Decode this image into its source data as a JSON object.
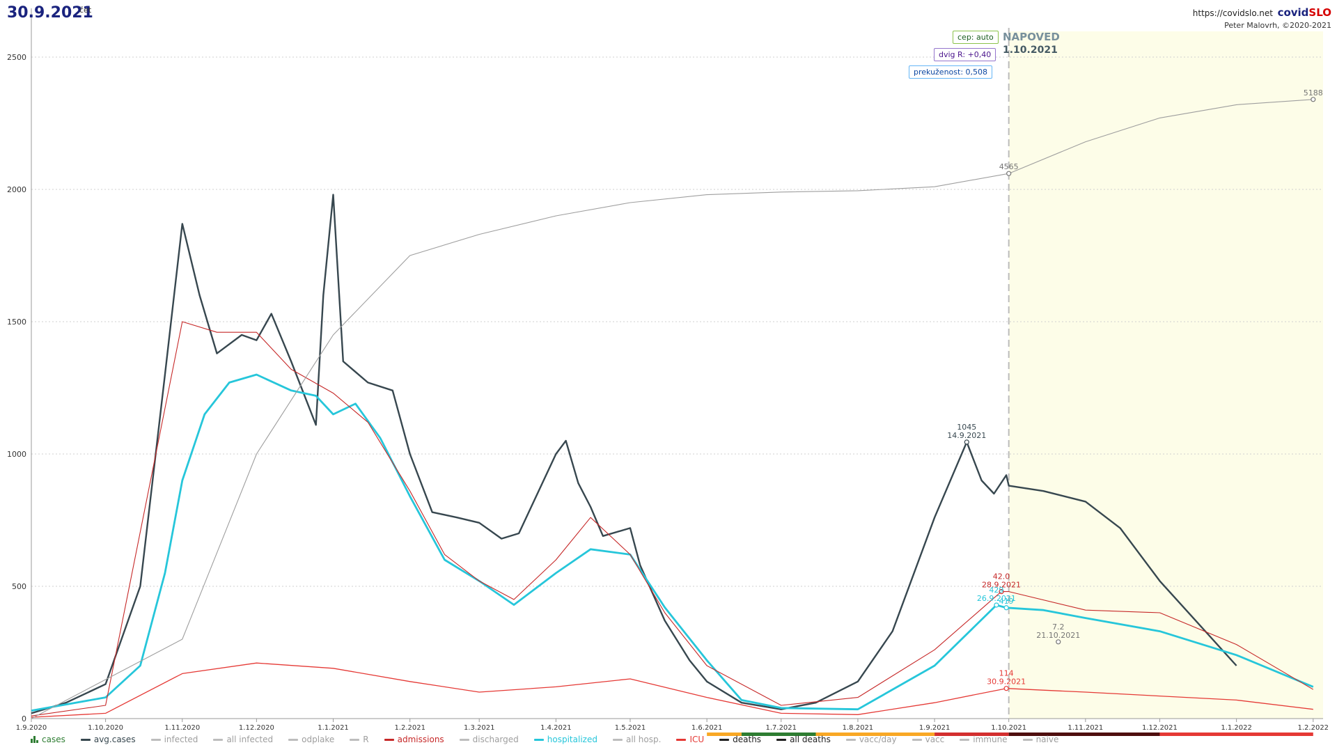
{
  "header": {
    "date": "30.9.2021",
    "day": "čet",
    "url": "https://covidslo.net",
    "brand_a": "covid",
    "brand_b": "SLO",
    "author": "Peter Malovrh, ©2020-2021"
  },
  "controls": {
    "cep": "cep: auto",
    "dvig": "dvig R: +0,40",
    "prekuzenost": "prekuženost: 0,508",
    "napoved": "NAPOVED",
    "napoved_date": "1.10.2021"
  },
  "legend": [
    {
      "label": "cases",
      "color": "#2e7d32",
      "kind": "bars",
      "muted": false
    },
    {
      "label": "avg.cases",
      "color": "#37474f",
      "kind": "line",
      "muted": false
    },
    {
      "label": "infected",
      "color": "#bdbdbd",
      "kind": "line",
      "muted": true
    },
    {
      "label": "all infected",
      "color": "#bdbdbd",
      "kind": "line",
      "muted": true
    },
    {
      "label": "odplake",
      "color": "#bdbdbd",
      "kind": "line",
      "muted": true
    },
    {
      "label": "R",
      "color": "#bdbdbd",
      "kind": "line",
      "muted": true
    },
    {
      "label": "admissions",
      "color": "#c62828",
      "kind": "line",
      "muted": false
    },
    {
      "label": "discharged",
      "color": "#bdbdbd",
      "kind": "line",
      "muted": true
    },
    {
      "label": "hospitalized",
      "color": "#26c6da",
      "kind": "line",
      "muted": false
    },
    {
      "label": "all hosp.",
      "color": "#bdbdbd",
      "kind": "line",
      "muted": true
    },
    {
      "label": "ICU",
      "color": "#e53935",
      "kind": "line",
      "muted": false
    },
    {
      "label": "deaths",
      "color": "#212121",
      "kind": "line",
      "muted": false
    },
    {
      "label": "all deaths",
      "color": "#212121",
      "kind": "line",
      "muted": false
    },
    {
      "label": "vacc/day",
      "color": "#bdbdbd",
      "kind": "line",
      "muted": true
    },
    {
      "label": "vacc",
      "color": "#bdbdbd",
      "kind": "line",
      "muted": true
    },
    {
      "label": "immune",
      "color": "#bdbdbd",
      "kind": "line",
      "muted": true
    },
    {
      "label": "naive",
      "color": "#bdbdbd",
      "kind": "line",
      "muted": true
    }
  ],
  "chart_data": {
    "type": "line",
    "ylim": [
      0,
      2500
    ],
    "yticks": [
      0,
      500,
      1000,
      1500,
      2000,
      2500
    ],
    "x_tick_labels": [
      "1.9.2020",
      "1.10.2020",
      "1.11.2020",
      "1.12.2020",
      "1.1.2021",
      "1.2.2021",
      "1.3.2021",
      "1.4.2021",
      "1.5.2021",
      "1.6.2021",
      "1.7.2021",
      "1.8.2021",
      "1.9.2021",
      "1.10.2021",
      "1.11.2021",
      "1.12.2021",
      "1.1.2022",
      "1.2.2022"
    ],
    "forecast_start": "1.10.2021",
    "grid": true,
    "series": [
      {
        "name": "avg.cases",
        "color": "#37474f",
        "width": 2.4,
        "points": [
          [
            "1.9.2020",
            20
          ],
          [
            "15.9.2020",
            60
          ],
          [
            "1.10.2020",
            130
          ],
          [
            "15.10.2020",
            500
          ],
          [
            "25.10.2020",
            1300
          ],
          [
            "1.11.2020",
            1870
          ],
          [
            "8.11.2020",
            1600
          ],
          [
            "15.11.2020",
            1380
          ],
          [
            "25.11.2020",
            1450
          ],
          [
            "1.12.2020",
            1430
          ],
          [
            "7.12.2020",
            1530
          ],
          [
            "15.12.2020",
            1350
          ],
          [
            "25.12.2020",
            1110
          ],
          [
            "28.12.2020",
            1600
          ],
          [
            "1.1.2021",
            1980
          ],
          [
            "5.1.2021",
            1350
          ],
          [
            "15.1.2021",
            1270
          ],
          [
            "25.1.2021",
            1240
          ],
          [
            "1.2.2021",
            1000
          ],
          [
            "10.2.2021",
            780
          ],
          [
            "20.2.2021",
            760
          ],
          [
            "1.3.2021",
            740
          ],
          [
            "10.3.2021",
            680
          ],
          [
            "17.3.2021",
            700
          ],
          [
            "25.3.2021",
            860
          ],
          [
            "1.4.2021",
            1000
          ],
          [
            "5.4.2021",
            1050
          ],
          [
            "10.4.2021",
            890
          ],
          [
            "15.4.2021",
            800
          ],
          [
            "20.4.2021",
            690
          ],
          [
            "1.5.2021",
            720
          ],
          [
            "5.5.2021",
            580
          ],
          [
            "15.5.2021",
            370
          ],
          [
            "25.5.2021",
            220
          ],
          [
            "1.6.2021",
            140
          ],
          [
            "15.6.2021",
            60
          ],
          [
            "1.7.2021",
            35
          ],
          [
            "15.7.2021",
            60
          ],
          [
            "1.8.2021",
            140
          ],
          [
            "15.8.2021",
            330
          ],
          [
            "1.9.2021",
            760
          ],
          [
            "14.9.2021",
            1045
          ],
          [
            "20.9.2021",
            900
          ],
          [
            "25.9.2021",
            850
          ],
          [
            "30.9.2021",
            920
          ],
          [
            "1.10.2021",
            880
          ],
          [
            "15.10.2021",
            860
          ],
          [
            "1.11.2021",
            820
          ],
          [
            "15.11.2021",
            720
          ],
          [
            "1.12.2021",
            520
          ],
          [
            "1.1.2022",
            200
          ]
        ]
      },
      {
        "name": "hospitalized",
        "color": "#26c6da",
        "width": 2.8,
        "points": [
          [
            "1.9.2020",
            30
          ],
          [
            "1.10.2020",
            80
          ],
          [
            "15.10.2020",
            200
          ],
          [
            "25.10.2020",
            550
          ],
          [
            "1.11.2020",
            900
          ],
          [
            "10.11.2020",
            1150
          ],
          [
            "20.11.2020",
            1270
          ],
          [
            "1.12.2020",
            1300
          ],
          [
            "15.12.2020",
            1240
          ],
          [
            "25.12.2020",
            1220
          ],
          [
            "1.1.2021",
            1150
          ],
          [
            "10.1.2021",
            1190
          ],
          [
            "20.1.2021",
            1060
          ],
          [
            "1.2.2021",
            840
          ],
          [
            "15.2.2021",
            600
          ],
          [
            "1.3.2021",
            520
          ],
          [
            "15.3.2021",
            430
          ],
          [
            "1.4.2021",
            550
          ],
          [
            "15.4.2021",
            640
          ],
          [
            "1.5.2021",
            620
          ],
          [
            "15.5.2021",
            420
          ],
          [
            "1.6.2021",
            220
          ],
          [
            "15.6.2021",
            70
          ],
          [
            "1.7.2021",
            40
          ],
          [
            "1.8.2021",
            35
          ],
          [
            "1.9.2021",
            200
          ],
          [
            "26.9.2021",
            429
          ],
          [
            "30.9.2021",
            419
          ],
          [
            "15.10.2021",
            410
          ],
          [
            "1.11.2021",
            380
          ],
          [
            "1.12.2021",
            330
          ],
          [
            "1.1.2022",
            240
          ],
          [
            "1.2.2022",
            120
          ]
        ]
      },
      {
        "name": "admissions",
        "color": "#c62828",
        "width": 1.1,
        "points": [
          [
            "1.9.2020",
            10
          ],
          [
            "1.10.2020",
            50
          ],
          [
            "1.11.2020",
            1500
          ],
          [
            "15.11.2020",
            1460
          ],
          [
            "1.12.2020",
            1460
          ],
          [
            "15.12.2020",
            1320
          ],
          [
            "1.1.2021",
            1230
          ],
          [
            "15.1.2021",
            1120
          ],
          [
            "1.2.2021",
            860
          ],
          [
            "15.2.2021",
            620
          ],
          [
            "1.3.2021",
            520
          ],
          [
            "15.3.2021",
            450
          ],
          [
            "1.4.2021",
            600
          ],
          [
            "15.4.2021",
            760
          ],
          [
            "1.5.2021",
            620
          ],
          [
            "15.5.2021",
            400
          ],
          [
            "1.6.2021",
            200
          ],
          [
            "1.7.2021",
            50
          ],
          [
            "1.8.2021",
            80
          ],
          [
            "1.9.2021",
            260
          ],
          [
            "28.9.2021",
            480
          ],
          [
            "1.10.2021",
            480
          ],
          [
            "1.11.2021",
            410
          ],
          [
            "1.12.2021",
            400
          ],
          [
            "1.1.2022",
            280
          ],
          [
            "1.2.2022",
            110
          ]
        ]
      },
      {
        "name": "ICU",
        "color": "#e53935",
        "width": 1.3,
        "points": [
          [
            "1.9.2020",
            5
          ],
          [
            "1.10.2020",
            20
          ],
          [
            "1.11.2020",
            170
          ],
          [
            "1.12.2020",
            210
          ],
          [
            "1.1.2021",
            190
          ],
          [
            "1.2.2021",
            140
          ],
          [
            "1.3.2021",
            100
          ],
          [
            "1.4.2021",
            120
          ],
          [
            "1.5.2021",
            150
          ],
          [
            "1.6.2021",
            80
          ],
          [
            "1.7.2021",
            20
          ],
          [
            "1.8.2021",
            15
          ],
          [
            "1.9.2021",
            60
          ],
          [
            "30.9.2021",
            114
          ],
          [
            "1.11.2021",
            100
          ],
          [
            "1.1.2022",
            70
          ],
          [
            "1.2.2022",
            35
          ]
        ]
      },
      {
        "name": "all deaths",
        "color": "#9e9e9e",
        "width": 1.1,
        "points": [
          [
            "1.9.2020",
            0
          ],
          [
            "1.11.2020",
            300
          ],
          [
            "1.12.2020",
            1000
          ],
          [
            "1.1.2021",
            1450
          ],
          [
            "1.2.2021",
            1750
          ],
          [
            "1.3.2021",
            1830
          ],
          [
            "1.4.2021",
            1900
          ],
          [
            "1.5.2021",
            1950
          ],
          [
            "1.6.2021",
            1980
          ],
          [
            "1.7.2021",
            1990
          ],
          [
            "1.8.2021",
            1995
          ],
          [
            "1.9.2021",
            2010
          ],
          [
            "1.10.2021",
            2060
          ],
          [
            "1.11.2021",
            2180
          ],
          [
            "1.12.2021",
            2270
          ],
          [
            "1.1.2022",
            2320
          ],
          [
            "1.2.2022",
            2340
          ]
        ]
      }
    ],
    "annotations": [
      {
        "text": "1045",
        "sub": "14.9.2021",
        "x": "14.9.2021",
        "y": 1045,
        "color": "#37474f"
      },
      {
        "text": "42.0",
        "sub": "28.9.2021",
        "x": "28.9.2021",
        "y": 480,
        "color": "#c62828"
      },
      {
        "text": "429",
        "sub": "26.9.2021",
        "x": "26.9.2021",
        "y": 429,
        "color": "#26c6da"
      },
      {
        "text": "419",
        "sub": "",
        "x": "30.9.2021",
        "y": 419,
        "color": "#26c6da"
      },
      {
        "text": "7.2",
        "sub": "21.10.2021",
        "x": "21.10.2021",
        "y": 290,
        "color": "#757575"
      },
      {
        "text": "114",
        "sub": "30.9.2021",
        "x": "30.9.2021",
        "y": 114,
        "color": "#e53935"
      },
      {
        "text": "4565",
        "sub": "",
        "x": "1.10.2021",
        "y": 2060,
        "color": "#757575"
      },
      {
        "text": "5188",
        "sub": "",
        "x": "1.2.2022",
        "y": 2340,
        "color": "#757575"
      }
    ]
  }
}
